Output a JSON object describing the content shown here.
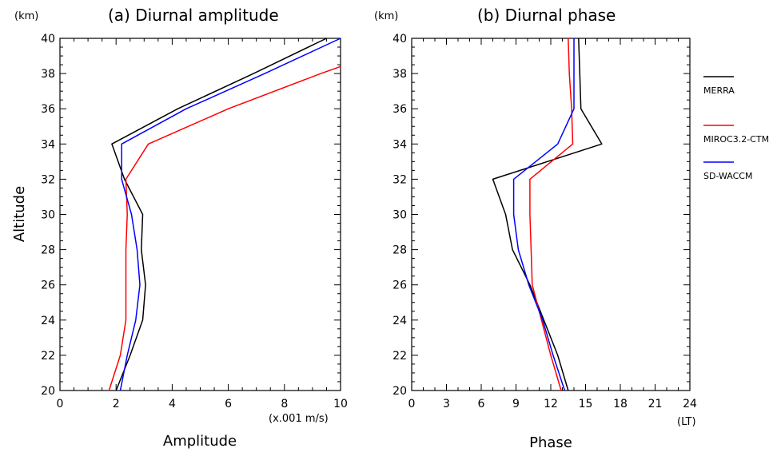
{
  "chart_data": [
    {
      "type": "line",
      "title": "(a) Diurnal amplitude",
      "xlabel": "Amplitude",
      "x_unit": "(x.001 m/s)",
      "ylabel": "Altitude",
      "y_unit": "(km)",
      "xlim": [
        0,
        10
      ],
      "ylim": [
        20,
        40
      ],
      "xticks": [
        "0",
        "2",
        "4",
        "6",
        "8",
        "10"
      ],
      "yticks": [
        "20",
        "22",
        "24",
        "26",
        "28",
        "30",
        "32",
        "34",
        "36",
        "38",
        "40"
      ],
      "altitudes": [
        20,
        22,
        24,
        26,
        28,
        30,
        32,
        34,
        36,
        38,
        40
      ],
      "series": [
        {
          "name": "MERRA",
          "color": "#000000",
          "values": [
            2.0,
            2.5,
            2.95,
            3.05,
            2.9,
            2.95,
            2.3,
            1.85,
            4.2,
            6.9,
            9.5
          ]
        },
        {
          "name": "MIROC3.2-CTM",
          "color": "#ff0000",
          "values": [
            1.75,
            2.15,
            2.35,
            2.35,
            2.35,
            2.4,
            2.35,
            3.15,
            6.0,
            9.3,
            10.0
          ]
        },
        {
          "name": "SD-WACCM",
          "color": "#0000ff",
          "values": [
            2.15,
            2.4,
            2.7,
            2.85,
            2.75,
            2.55,
            2.2,
            2.2,
            4.5,
            7.3,
            10.0
          ]
        }
      ],
      "y_for_last_point": [
        20,
        22,
        24,
        26,
        28,
        30,
        32,
        34,
        36,
        38,
        38.4
      ]
    },
    {
      "type": "line",
      "title": "(b) Diurnal phase",
      "xlabel": "Phase",
      "x_unit": "(LT)",
      "ylabel": "",
      "y_unit": "(km)",
      "xlim": [
        0,
        24
      ],
      "ylim": [
        20,
        40
      ],
      "xticks": [
        "0",
        "3",
        "6",
        "9",
        "12",
        "15",
        "18",
        "21",
        "24"
      ],
      "yticks": [
        "20",
        "22",
        "24",
        "26",
        "28",
        "30",
        "32",
        "34",
        "36",
        "38",
        "40"
      ],
      "altitudes": [
        20,
        22,
        24,
        26,
        28,
        30,
        32,
        34,
        36,
        38,
        40
      ],
      "series": [
        {
          "name": "MERRA",
          "color": "#000000",
          "values": [
            13.5,
            12.6,
            11.4,
            10.2,
            8.7,
            8.1,
            7.0,
            16.4,
            14.6,
            14.5,
            14.4
          ]
        },
        {
          "name": "MIROC3.2-CTM",
          "color": "#ff0000",
          "values": [
            12.9,
            12.0,
            11.2,
            10.4,
            10.3,
            10.2,
            10.2,
            13.9,
            13.8,
            13.6,
            13.5
          ]
        },
        {
          "name": "SD-WACCM",
          "color": "#0000ff",
          "values": [
            13.2,
            12.2,
            11.3,
            10.1,
            9.2,
            8.8,
            8.8,
            12.6,
            14.0,
            14.0,
            14.0
          ]
        }
      ]
    }
  ],
  "legend": [
    {
      "label": "MERRA",
      "color": "#000000"
    },
    {
      "label": "MIROC3.2-CTM",
      "color": "#ff0000"
    },
    {
      "label": "SD-WACCM",
      "color": "#0000ff"
    }
  ]
}
